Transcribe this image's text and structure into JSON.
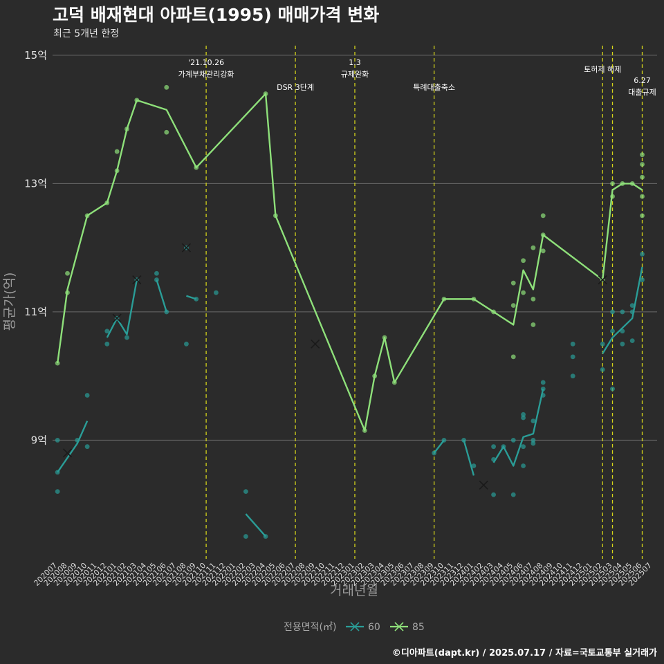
{
  "header": {
    "title": "고덕 배재현대 아파트(1995) 매매가격 변화",
    "subtitle": "최근 5개년 한정"
  },
  "caption": "©디아파트(dapt.kr) / 2025.07.17 / 자료=국토교통부 실거래가",
  "colors": {
    "s60": "#2a9d97",
    "s85": "#8ee07a",
    "vline": "#d4d41a",
    "grid": "#6a6a6a",
    "cross": "#1a1a1a"
  },
  "chart_data": {
    "type": "line",
    "xlabel": "거래년월",
    "ylabel": "평균가(억)",
    "ylim": [
      7.15,
      15.15
    ],
    "yticks": [
      {
        "v": 9,
        "label": "9억"
      },
      {
        "v": 11,
        "label": "11억"
      },
      {
        "v": 13,
        "label": "13억"
      },
      {
        "v": 15,
        "label": "15억"
      }
    ],
    "categories": [
      "202007",
      "202008",
      "202009",
      "202010",
      "202011",
      "202012",
      "202101",
      "202102",
      "202103",
      "202104",
      "202105",
      "202106",
      "202107",
      "202108",
      "202109",
      "202110",
      "202111",
      "202112",
      "202201",
      "202202",
      "202203",
      "202204",
      "202205",
      "202206",
      "202207",
      "202208",
      "202209",
      "202210",
      "202211",
      "202212",
      "202301",
      "202302",
      "202303",
      "202304",
      "202305",
      "202306",
      "202307",
      "202308",
      "202309",
      "202310",
      "202311",
      "202312",
      "202401",
      "202402",
      "202403",
      "202404",
      "202405",
      "202406",
      "202407",
      "202408",
      "202409",
      "202410",
      "202411",
      "202412",
      "202501",
      "202502",
      "202503",
      "202504",
      "202505",
      "202506",
      "202507"
    ],
    "legend": {
      "title": "전용면적(㎡)",
      "placement": "bottom"
    },
    "series": [
      {
        "name": "60",
        "color": "#2a9d97",
        "segments": [
          [
            [
              "202007",
              8.5
            ],
            [
              "202009",
              8.95
            ],
            [
              "202010",
              9.3
            ]
          ],
          [
            [
              "202012",
              10.6
            ],
            [
              "202101",
              10.9
            ],
            [
              "202102",
              10.65
            ],
            [
              "202103",
              11.5
            ]
          ],
          [
            [
              "202105",
              11.5
            ],
            [
              "202106",
              11.0
            ]
          ],
          [
            [
              "202108",
              11.25
            ],
            [
              "202109",
              11.2
            ]
          ],
          [
            [
              "202202",
              7.85
            ],
            [
              "202204",
              7.5
            ]
          ],
          [
            [
              "202309",
              8.8
            ],
            [
              "202310",
              9.0
            ]
          ],
          [
            [
              "202312",
              9.0
            ],
            [
              "202401",
              8.45
            ]
          ],
          [
            [
              "202403",
              8.65
            ],
            [
              "202404",
              8.9
            ],
            [
              "202405",
              8.6
            ],
            [
              "202406",
              9.05
            ],
            [
              "202407",
              9.1
            ],
            [
              "202408",
              9.8
            ]
          ],
          [
            [
              "202502",
              10.35
            ],
            [
              "202503",
              10.6
            ],
            [
              "202505",
              10.9
            ],
            [
              "202506",
              11.7
            ]
          ]
        ],
        "points": [
          [
            "202007",
            9.0
          ],
          [
            "202007",
            8.5
          ],
          [
            "202007",
            8.2
          ],
          [
            "202009",
            9.0
          ],
          [
            "202010",
            9.7
          ],
          [
            "202010",
            8.9
          ],
          [
            "202012",
            10.7
          ],
          [
            "202012",
            10.5
          ],
          [
            "202101",
            10.9
          ],
          [
            "202102",
            10.6
          ],
          [
            "202103",
            11.5
          ],
          [
            "202105",
            11.6
          ],
          [
            "202105",
            11.5
          ],
          [
            "202106",
            11.0
          ],
          [
            "202108",
            12.0
          ],
          [
            "202108",
            10.5
          ],
          [
            "202109",
            11.2
          ],
          [
            "202111",
            11.3
          ],
          [
            "202202",
            8.2
          ],
          [
            "202202",
            7.5
          ],
          [
            "202204",
            7.5
          ],
          [
            "202309",
            8.8
          ],
          [
            "202310",
            9.0
          ],
          [
            "202312",
            9.0
          ],
          [
            "202401",
            8.6
          ],
          [
            "202403",
            8.9
          ],
          [
            "202403",
            8.7
          ],
          [
            "202403",
            8.15
          ],
          [
            "202404",
            8.9
          ],
          [
            "202405",
            8.15
          ],
          [
            "202405",
            9.0
          ],
          [
            "202406",
            9.4
          ],
          [
            "202406",
            9.35
          ],
          [
            "202406",
            8.6
          ],
          [
            "202406",
            8.9
          ],
          [
            "202407",
            9.3
          ],
          [
            "202407",
            9.0
          ],
          [
            "202407",
            8.95
          ],
          [
            "202408",
            9.9
          ],
          [
            "202408",
            9.8
          ],
          [
            "202408",
            9.7
          ],
          [
            "202411",
            10.5
          ],
          [
            "202411",
            10.3
          ],
          [
            "202411",
            10.0
          ],
          [
            "202502",
            10.5
          ],
          [
            "202502",
            10.1
          ],
          [
            "202503",
            11.0
          ],
          [
            "202503",
            10.7
          ],
          [
            "202503",
            9.8
          ],
          [
            "202504",
            11.0
          ],
          [
            "202504",
            10.7
          ],
          [
            "202504",
            10.5
          ],
          [
            "202505",
            11.0
          ],
          [
            "202505",
            11.1
          ],
          [
            "202505",
            10.55
          ],
          [
            "202506",
            11.9
          ],
          [
            "202506",
            11.5
          ]
        ],
        "crosses": [
          [
            "202008",
            8.8
          ],
          [
            "202101",
            10.9
          ],
          [
            "202103",
            11.5
          ],
          [
            "202108",
            12.0
          ],
          [
            "202209",
            10.5
          ],
          [
            "202402",
            8.3
          ]
        ]
      },
      {
        "name": "85",
        "color": "#8ee07a",
        "segments": [
          [
            [
              "202007",
              10.2
            ],
            [
              "202008",
              11.35
            ],
            [
              "202010",
              12.5
            ],
            [
              "202012",
              12.7
            ],
            [
              "202101",
              13.2
            ],
            [
              "202102",
              13.85
            ],
            [
              "202103",
              14.3
            ],
            [
              "202106",
              14.15
            ],
            [
              "202109",
              13.25
            ],
            [
              "202204",
              14.4
            ],
            [
              "202205",
              12.5
            ],
            [
              "202302",
              9.15
            ],
            [
              "202303",
              10.0
            ],
            [
              "202304",
              10.6
            ],
            [
              "202305",
              9.9
            ],
            [
              "202310",
              11.2
            ],
            [
              "202401",
              11.2
            ],
            [
              "202403",
              11.0
            ],
            [
              "202405",
              10.8
            ],
            [
              "202406",
              11.65
            ],
            [
              "202407",
              11.35
            ],
            [
              "202408",
              12.2
            ],
            [
              "202502",
              11.5
            ],
            [
              "202503",
              12.9
            ],
            [
              "202504",
              13.0
            ],
            [
              "202505",
              13.0
            ],
            [
              "202506",
              12.9
            ]
          ]
        ],
        "points": [
          [
            "202007",
            10.2
          ],
          [
            "202008",
            11.6
          ],
          [
            "202008",
            11.3
          ],
          [
            "202010",
            12.5
          ],
          [
            "202012",
            12.7
          ],
          [
            "202101",
            13.5
          ],
          [
            "202101",
            13.2
          ],
          [
            "202102",
            13.85
          ],
          [
            "202103",
            14.3
          ],
          [
            "202106",
            14.5
          ],
          [
            "202106",
            13.8
          ],
          [
            "202109",
            13.25
          ],
          [
            "202204",
            14.4
          ],
          [
            "202205",
            12.5
          ],
          [
            "202302",
            9.15
          ],
          [
            "202303",
            10.0
          ],
          [
            "202304",
            10.6
          ],
          [
            "202305",
            9.9
          ],
          [
            "202310",
            11.2
          ],
          [
            "202401",
            11.2
          ],
          [
            "202403",
            11.0
          ],
          [
            "202405",
            11.45
          ],
          [
            "202405",
            11.1
          ],
          [
            "202405",
            10.3
          ],
          [
            "202406",
            11.8
          ],
          [
            "202406",
            11.3
          ],
          [
            "202407",
            12.0
          ],
          [
            "202407",
            11.2
          ],
          [
            "202407",
            10.8
          ],
          [
            "202408",
            12.5
          ],
          [
            "202408",
            11.95
          ],
          [
            "202408",
            12.2
          ],
          [
            "202502",
            11.5
          ],
          [
            "202503",
            13.0
          ],
          [
            "202503",
            12.8
          ],
          [
            "202504",
            13.0
          ],
          [
            "202505",
            13.0
          ],
          [
            "202506",
            13.45
          ],
          [
            "202506",
            13.3
          ],
          [
            "202506",
            13.1
          ],
          [
            "202506",
            12.8
          ],
          [
            "202506",
            12.5
          ]
        ],
        "crosses": [
          [
            "202502",
            11.5
          ]
        ]
      }
    ],
    "events": [
      {
        "x": "202110",
        "lines": [
          "'21.10.26",
          "가계부채관리강화"
        ],
        "row": 0
      },
      {
        "x": "202207",
        "lines": [
          "DSR 3단계"
        ],
        "row": 2
      },
      {
        "x": "202301",
        "lines": [
          "1.3",
          "규제완화"
        ],
        "row": 0
      },
      {
        "x": "202309",
        "lines": [
          "특례대출축소"
        ],
        "row": 2
      },
      {
        "x": "202502",
        "lines": [
          "토허제 해제"
        ],
        "row": 1
      },
      {
        "x": "202503",
        "lines": [],
        "row": 1
      },
      {
        "x": "202506",
        "lines": [
          "6.27",
          "대출규제"
        ],
        "row": 3
      }
    ]
  }
}
